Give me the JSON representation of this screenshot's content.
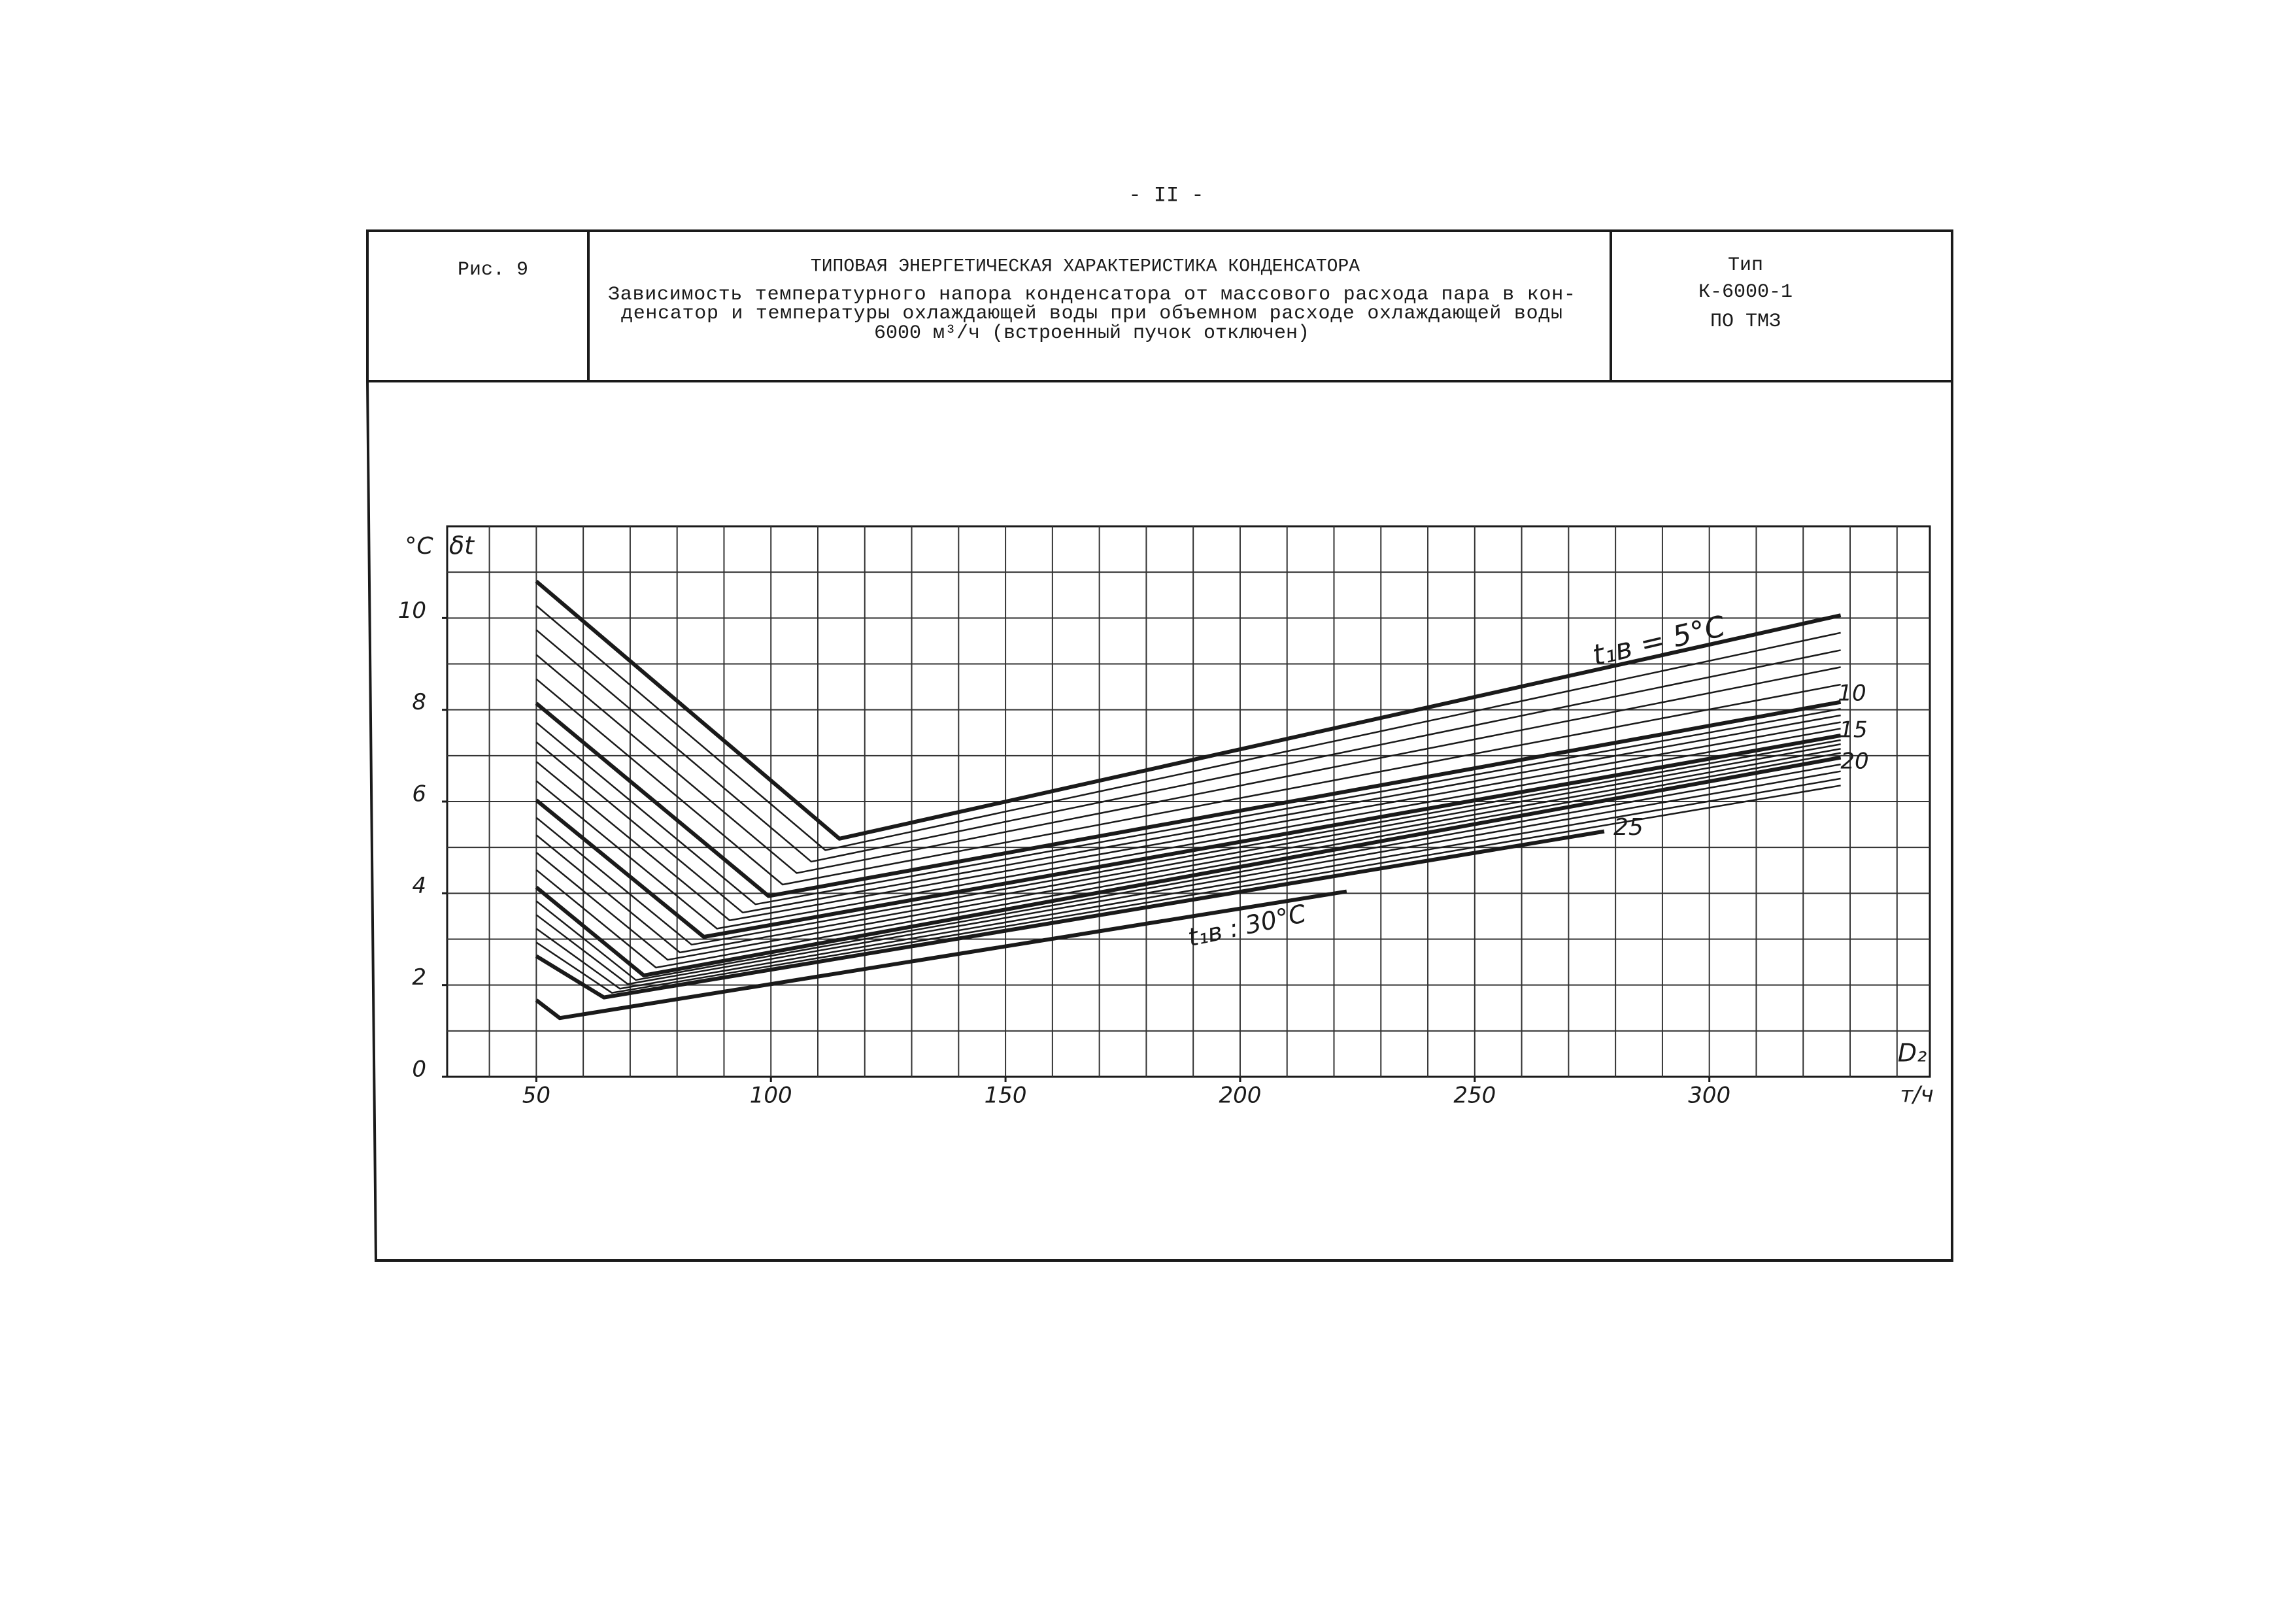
{
  "page_number": "- II -",
  "header": {
    "figure": "Рис. 9",
    "title": "ТИПОВАЯ ЭНЕРГЕТИЧЕСКАЯ ХАРАКТЕРИСТИКА КОНДЕНСАТОРА",
    "subtitle_lines": [
      "Зависимость температурного напора конденсатора от массового расхода пара в кон-",
      "денсатор и температуры охлаждающей воды при объемном расходе охлаждающей воды",
      "6000 м³/ч (встроенный пучок отключен)"
    ],
    "type_lines": [
      "Тип",
      "К-6000-1",
      "ПО ТМЗ"
    ]
  },
  "chart_data": {
    "type": "line",
    "y_unit": "°C",
    "y_label": "δt",
    "x_label": "D₂",
    "x_unit": "т/ч",
    "xlim": [
      31,
      347
    ],
    "ylim": [
      0,
      12
    ],
    "xticks": [
      50,
      100,
      150,
      200,
      250,
      300
    ],
    "yticks": [
      0,
      2,
      4,
      6,
      8,
      10
    ],
    "xgrid": [
      40,
      50,
      60,
      70,
      80,
      90,
      100,
      110,
      120,
      130,
      140,
      150,
      160,
      170,
      180,
      190,
      200,
      210,
      220,
      230,
      240,
      250,
      260,
      270,
      280,
      290,
      300,
      310,
      320,
      330,
      340
    ],
    "ygrid": [
      1,
      2,
      3,
      4,
      5,
      6,
      7,
      8,
      9,
      10,
      11
    ],
    "grid": true,
    "color": "#1a1a1a",
    "series": [
      {
        "bold": true,
        "x": [
          50,
          114.6,
          328
        ],
        "values": [
          10.8,
          5.19,
          10.06
        ]
      },
      {
        "bold": false,
        "x": [
          50,
          111.6,
          328
        ],
        "values": [
          10.27,
          4.94,
          9.68
        ]
      },
      {
        "bold": false,
        "x": [
          50,
          108.6,
          328
        ],
        "values": [
          9.74,
          4.69,
          9.3
        ]
      },
      {
        "bold": false,
        "x": [
          50,
          105.5,
          328
        ],
        "values": [
          9.2,
          4.44,
          8.93
        ]
      },
      {
        "bold": false,
        "x": [
          50,
          102.5,
          328
        ],
        "values": [
          8.67,
          4.19,
          8.55
        ]
      },
      {
        "bold": true,
        "x": [
          50,
          99.5,
          328
        ],
        "values": [
          8.14,
          3.94,
          8.17
        ]
      },
      {
        "bold": false,
        "x": [
          50,
          96.7,
          328
        ],
        "values": [
          7.72,
          3.76,
          8.02
        ]
      },
      {
        "bold": false,
        "x": [
          50,
          94,
          328
        ],
        "values": [
          7.3,
          3.58,
          7.88
        ]
      },
      {
        "bold": false,
        "x": [
          50,
          91.2,
          328
        ],
        "values": [
          6.87,
          3.41,
          7.73
        ]
      },
      {
        "bold": false,
        "x": [
          50,
          88.5,
          328
        ],
        "values": [
          6.45,
          3.23,
          7.59
        ]
      },
      {
        "bold": true,
        "x": [
          50,
          85.7,
          328
        ],
        "values": [
          6.03,
          3.05,
          7.44
        ]
      },
      {
        "bold": false,
        "x": [
          50,
          83.1,
          328
        ],
        "values": [
          5.65,
          2.88,
          7.34
        ]
      },
      {
        "bold": false,
        "x": [
          50,
          80.6,
          328
        ],
        "values": [
          5.27,
          2.71,
          7.25
        ]
      },
      {
        "bold": false,
        "x": [
          50,
          78,
          328
        ],
        "values": [
          4.89,
          2.55,
          7.15
        ]
      },
      {
        "bold": false,
        "x": [
          50,
          75.5,
          328
        ],
        "values": [
          4.51,
          2.38,
          7.06
        ]
      },
      {
        "bold": true,
        "x": [
          50,
          72.9,
          328
        ],
        "values": [
          4.13,
          2.21,
          6.96
        ]
      },
      {
        "bold": false,
        "x": [
          50,
          71.2,
          328
        ],
        "values": [
          3.83,
          2.11,
          6.81
        ]
      },
      {
        "bold": false,
        "x": [
          50,
          69.5,
          328
        ],
        "values": [
          3.53,
          2.02,
          6.66
        ]
      },
      {
        "bold": false,
        "x": [
          50,
          67.8,
          328
        ],
        "values": [
          3.23,
          1.92,
          6.5
        ]
      },
      {
        "bold": false,
        "x": [
          50,
          66.1,
          328
        ],
        "values": [
          2.93,
          1.83,
          6.35
        ]
      },
      {
        "bold": true,
        "x": [
          50,
          64.4,
          277.6
        ],
        "values": [
          2.63,
          1.73,
          5.35
        ]
      },
      {
        "bold": true,
        "x": [
          50,
          55,
          222.7
        ],
        "values": [
          1.67,
          1.28,
          4.04
        ]
      }
    ],
    "annotations": [
      "t₁в = 5°C",
      "10",
      "15",
      "20",
      "25",
      "t₁в : 30°C"
    ]
  }
}
